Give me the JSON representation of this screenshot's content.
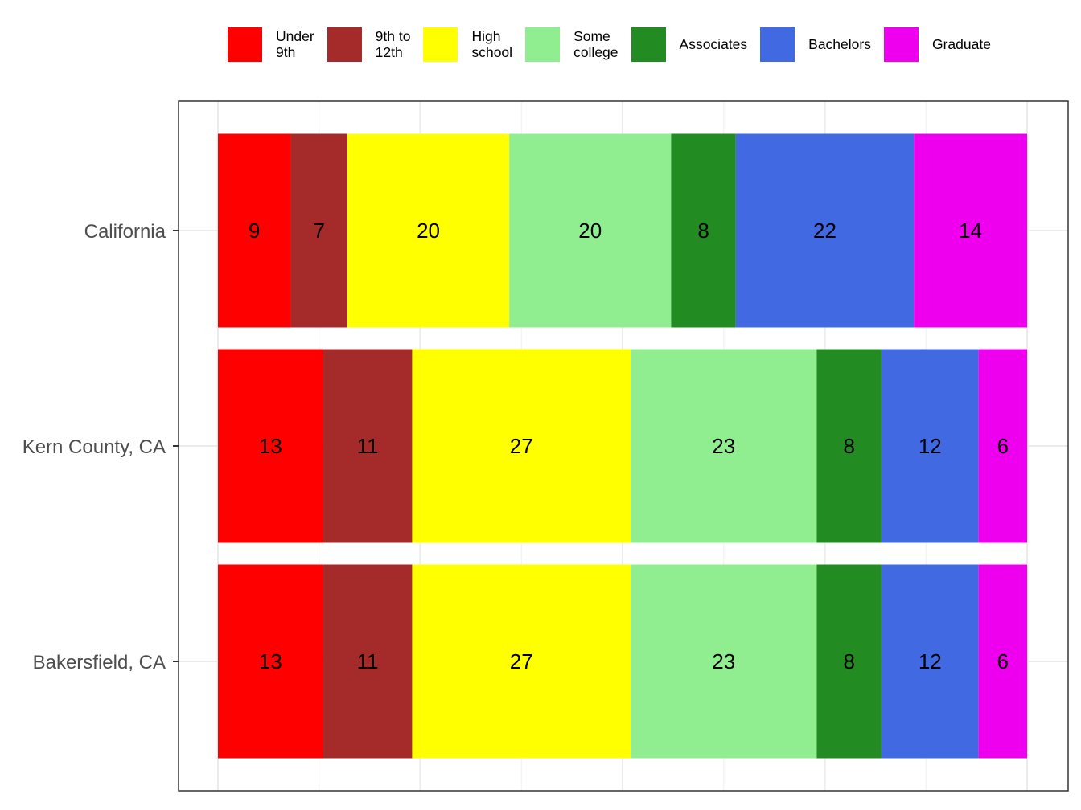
{
  "chart_data": {
    "type": "bar",
    "orientation": "horizontal",
    "stacked": true,
    "title": "",
    "xlabel": "",
    "ylabel": "",
    "xlim": [
      0,
      100
    ],
    "grid": true,
    "legend_position": "top",
    "categories": [
      "California",
      "Kern County, CA",
      "Bakersfield, CA"
    ],
    "series": [
      {
        "name": "Under\n9th",
        "color": "#FF0000",
        "values": [
          9,
          13,
          13
        ]
      },
      {
        "name": "9th to\n12th",
        "color": "#A52A2A",
        "values": [
          7,
          11,
          11
        ]
      },
      {
        "name": "High\nschool",
        "color": "#FFFF00",
        "values": [
          20,
          27,
          27
        ]
      },
      {
        "name": "Some\ncollege",
        "color": "#90EE90",
        "values": [
          20,
          23,
          23
        ]
      },
      {
        "name": "Associates",
        "color": "#228B22",
        "values": [
          8,
          8,
          8
        ]
      },
      {
        "name": "Bachelors",
        "color": "#4169E1",
        "values": [
          22,
          12,
          12
        ]
      },
      {
        "name": "Graduate",
        "color": "#EE00EE",
        "values": [
          14,
          6,
          6
        ]
      }
    ]
  }
}
